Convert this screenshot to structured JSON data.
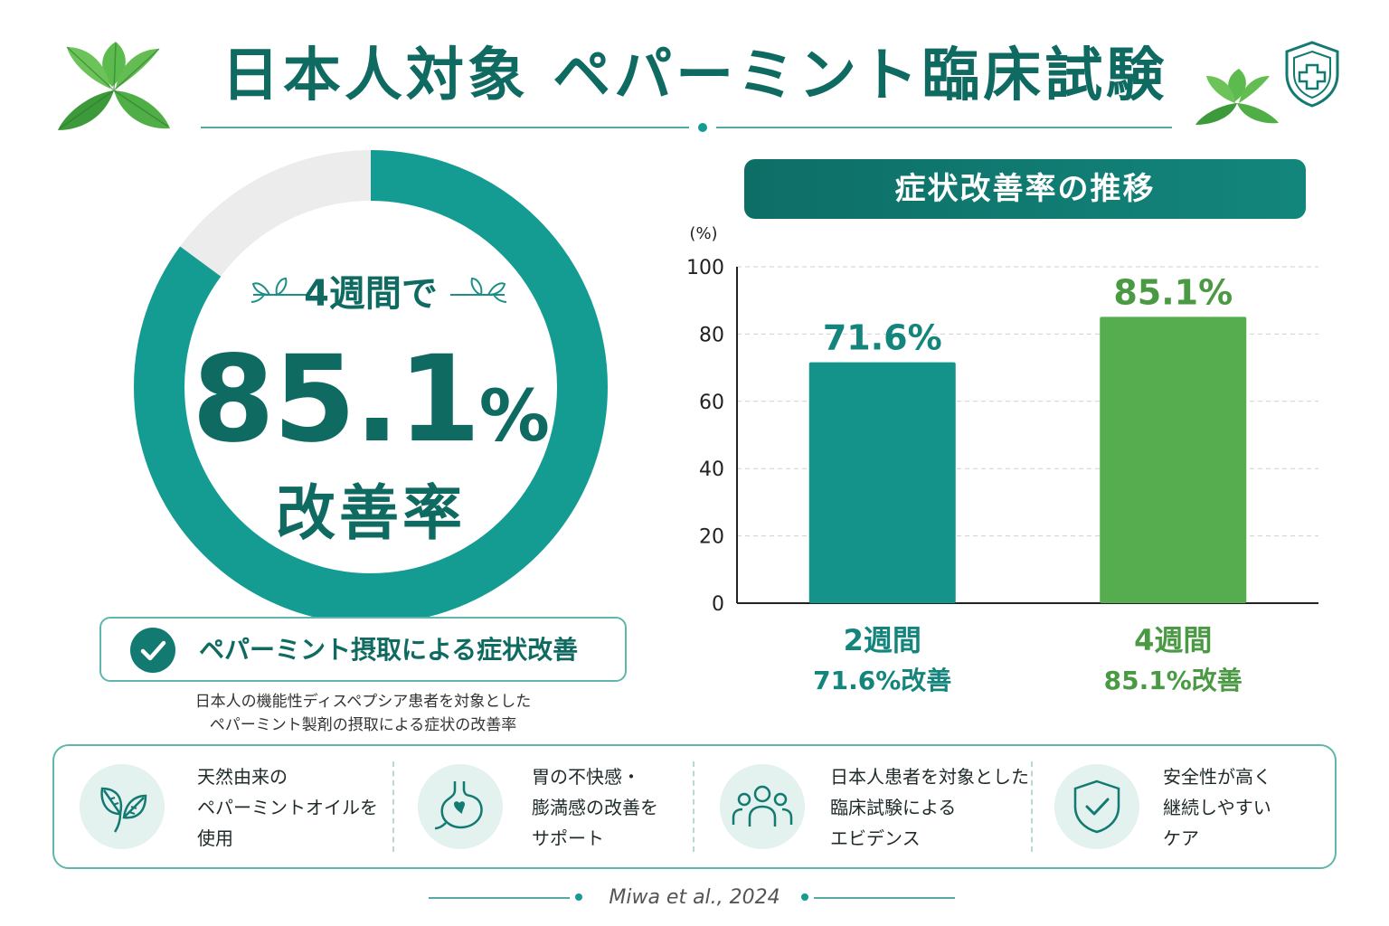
{
  "header": {
    "title": "日本人対象 ペパーミント臨床試験"
  },
  "ring": {
    "value_percent": 85.1,
    "period_label": "4週間で",
    "value_label": "85.1",
    "value_unit": "%",
    "caption": "改善率",
    "colors": {
      "fill": "#149c93",
      "track": "#ececec"
    }
  },
  "badge": {
    "text": "ペパーミント摂取による症状改善"
  },
  "notes": [
    "日本人の機能性ディスペプシア患者を対象とした",
    "ペパーミント製剤の摂取による症状の改善率"
  ],
  "chart_data": {
    "type": "bar",
    "title": "症状改善率の推移",
    "ylabel": "(%)",
    "ylim": [
      0,
      100
    ],
    "yticks": [
      0,
      20,
      40,
      60,
      80,
      100
    ],
    "grid": true,
    "categories": [
      "2週間",
      "4週間"
    ],
    "values": [
      71.6,
      85.1
    ],
    "value_labels": [
      "71.6%",
      "85.1%"
    ],
    "captions": [
      "71.6%改善",
      "85.1%改善"
    ],
    "colors": [
      "#13938a",
      "#55ad4f"
    ],
    "label_colors": [
      "#13857c",
      "#4a9a44"
    ]
  },
  "features": [
    {
      "icon": "leaf-icon",
      "lines": [
        "天然由来の",
        "ペパーミントオイルを",
        "使用"
      ]
    },
    {
      "icon": "stomach-icon",
      "lines": [
        "胃の不快感・",
        "膨満感の改善を",
        "サポート"
      ]
    },
    {
      "icon": "people-icon",
      "lines": [
        "日本人患者を対象とした",
        "臨床試験による",
        "エビデンス"
      ]
    },
    {
      "icon": "shield-check-icon",
      "lines": [
        "安全性が高く",
        "継続しやすい",
        "ケア"
      ]
    }
  ],
  "footer": {
    "citation": "Miwa et al., 2024"
  },
  "colors": {
    "primary": "#0f6b62",
    "accent": "#149c93",
    "green": "#55ad4f"
  }
}
